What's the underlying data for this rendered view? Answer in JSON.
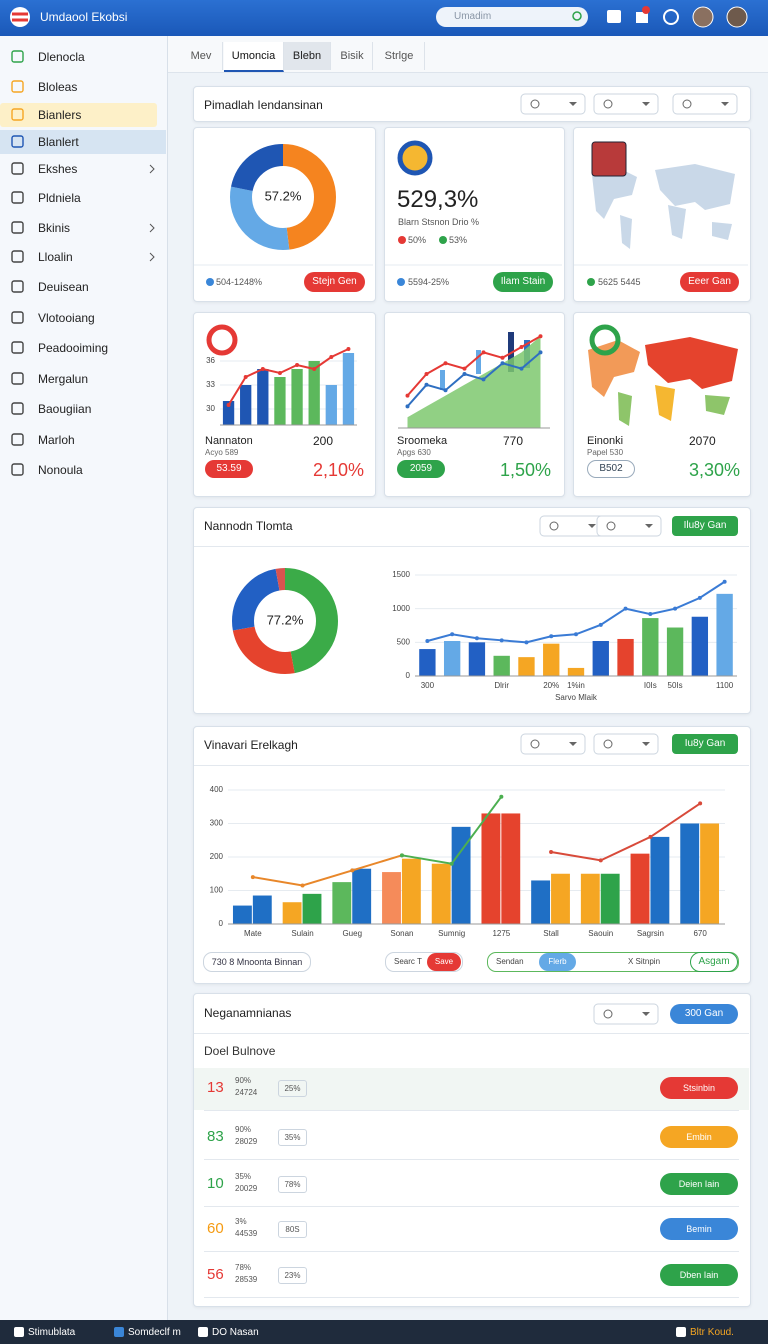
{
  "header": {
    "title": "Umdaool Ekobsi",
    "search": "Umadim"
  },
  "sidebar": {
    "items": [
      "Dlenocla",
      "Bloleas",
      "Bianlers",
      "Blanlert",
      "Ekshes",
      "Pldniela",
      "Bkinis",
      "Lloalin",
      "Deuisean",
      "Vlotooiang",
      "Peadooiming",
      "Mergalun",
      "Baougiian",
      "Marloh",
      "Nonoula"
    ]
  },
  "tabs": [
    "Mev",
    "Umoncia",
    "Blebn",
    "Bisik",
    "Strlge"
  ],
  "overview": {
    "title": "Pimadlah Iendansinan",
    "cards": [
      {
        "center": "57.2%",
        "segments": [
          {
            "color": "#f5841f",
            "value": 48
          },
          {
            "color": "#64a9e6",
            "value": 30
          },
          {
            "color": "#1f56b3",
            "value": 22
          }
        ],
        "footer": "504-1248%",
        "button": "Stejn Gen"
      },
      {
        "value": "529,3%",
        "caption": "Blarn Stsnon Drio %",
        "legend": [
          "50%",
          "53%"
        ],
        "footer": "5594-25%",
        "button": "Ilam Stain"
      },
      {
        "footer": "5625 5445",
        "button": "Eeer Gan"
      },
      {
        "name": "Nannaton",
        "count": "200",
        "sub": "Acyo 589",
        "badge": "53.59",
        "change": "2,10%",
        "chart": {
          "ylim": [
            28,
            38
          ],
          "yticks": [
            30,
            33,
            36
          ],
          "bars": {
            "colors": [
              "#1f56b3",
              "#1f56b3",
              "#1f56b3",
              "#5cb85c",
              "#5cb85c",
              "#5cb85c",
              "#64a9e6",
              "#64a9e6"
            ],
            "values": [
              31,
              33,
              35,
              34,
              35,
              36,
              33,
              37
            ]
          },
          "lines": [
            {
              "color": "#e53935",
              "values": [
                30.5,
                34,
                35,
                34.5,
                35.5,
                35,
                36.5,
                37.5
              ]
            }
          ]
        }
      },
      {
        "name": "Sroomeka",
        "count": "770",
        "sub": "Apgs 630",
        "badge": "2059",
        "change": "1,50%",
        "chart": {
          "ylim": [
            0,
            10
          ],
          "area": {
            "color": "#7ec86f",
            "values": [
              1,
              2,
              3,
              4,
              5,
              6,
              7,
              8.5
            ]
          },
          "lines": [
            {
              "color": "#2f6fc1",
              "values": [
                2,
                4,
                3.5,
                5,
                4.5,
                6,
                5.5,
                7
              ]
            },
            {
              "color": "#e53935",
              "values": [
                3,
                5,
                6,
                5.5,
                7,
                6.5,
                7.5,
                8.5
              ]
            }
          ]
        }
      },
      {
        "name": "Einonki",
        "count": "2070",
        "sub": "Papel 530",
        "badge": "B502",
        "change": "3,30%"
      }
    ]
  },
  "trend": {
    "title": "Nannodn Tlomta",
    "button": "Ilu8y Gan",
    "donut": {
      "center": "77.2%",
      "segments": [
        {
          "color": "#3bab48",
          "value": 47
        },
        {
          "color": "#e5432d",
          "value": 25
        },
        {
          "color": "#2260c4",
          "value": 25
        },
        {
          "color": "#d9534f",
          "value": 3
        }
      ]
    },
    "chart": {
      "ylim": [
        0,
        1500
      ],
      "yticks": [
        0,
        500,
        1000,
        1500
      ],
      "xlabel": "Sarvo Mlaik",
      "categories": [
        "300",
        null,
        null,
        "Dlrir",
        null,
        "20%",
        "1%in",
        null,
        null,
        "I0Is",
        "50Is",
        null,
        "1100"
      ],
      "bars": {
        "colors": [
          "#2260c4",
          "#64a9e6",
          "#2260c4",
          "#5cb85c",
          "#f5a623",
          "#f5a623",
          "#f5a623",
          "#2260c4",
          "#e5432d",
          "#5cb85c",
          "#5cb85c",
          "#2260c4",
          "#64a9e6"
        ],
        "values": [
          400,
          520,
          500,
          300,
          280,
          480,
          120,
          520,
          550,
          860,
          720,
          880,
          1220
        ]
      },
      "lines": [
        {
          "color": "#3a7bd5",
          "values": [
            520,
            620,
            560,
            530,
            500,
            590,
            620,
            760,
            1000,
            920,
            1000,
            1160,
            1400
          ]
        }
      ]
    }
  },
  "volume": {
    "title": "Vinavari Erelkagh",
    "button": "Iu8y Gan",
    "chart": {
      "ylim": [
        0,
        400
      ],
      "yticks": [
        0,
        100,
        200,
        300,
        400
      ],
      "categories": [
        "Mate",
        "Sulain",
        "Gueg",
        "Sonan",
        "Sumnig",
        "1275",
        "Stall",
        "Saouin",
        "Sagrsin",
        "670"
      ],
      "series": [
        {
          "colors": [
            "#1f6fc5",
            "#f5a623",
            "#5cb85c",
            "#f58b5a",
            "#f5a623",
            "#e5432d",
            "#1f6fc5",
            "#f5a623",
            "#e5432d",
            "#1f6fc5"
          ],
          "values": [
            55,
            65,
            125,
            155,
            180,
            330,
            130,
            150,
            210,
            300
          ]
        },
        {
          "colors": [
            "#1f6fc5",
            "#2ea34a",
            "#1f6fc5",
            "#f5a623",
            "#1f6fc5",
            "#e5432d",
            "#f5a623",
            "#2ea34a",
            "#1f6fc5",
            "#f5a623"
          ],
          "values": [
            85,
            90,
            165,
            195,
            290,
            330,
            150,
            150,
            260,
            300
          ]
        }
      ],
      "lines": [
        {
          "color": "#e8872a",
          "values": [
            140,
            115,
            160,
            205,
            null,
            null,
            null,
            null,
            null,
            null
          ]
        },
        {
          "color": "#4caf50",
          "values": [
            null,
            null,
            null,
            205,
            180,
            380,
            null,
            null,
            null,
            null
          ]
        },
        {
          "color": "#d84a3a",
          "values": [
            null,
            null,
            null,
            null,
            null,
            null,
            215,
            190,
            260,
            360
          ]
        }
      ]
    },
    "controls": {
      "range": "730 8 Mnoonta Binnan",
      "search": "Searc T",
      "save": "Save",
      "send": "Sendan",
      "filter": "Flerb",
      "stop": "X Sitnpin",
      "assign": "Asgam"
    }
  },
  "list": {
    "title": "Neganamnianas",
    "button": "300 Gan",
    "subtitle": "Doel Bulnove",
    "rows": [
      {
        "rank": "13",
        "color": "#e53935",
        "share": "90%",
        "amount": "24724",
        "badge": "25%",
        "action": "Stsinbin",
        "action_color": "#e53935"
      },
      {
        "rank": "83",
        "color": "#2ea34a",
        "share": "90%",
        "amount": "28029",
        "badge": "35%",
        "action": "Embin",
        "action_color": "#f5a623"
      },
      {
        "rank": "10",
        "color": "#2ea34a",
        "share": "35%",
        "amount": "20029",
        "badge": "78%",
        "action": "Deien Iain",
        "action_color": "#2ea34a"
      },
      {
        "rank": "60",
        "color": "#f59b12",
        "share": "3%",
        "amount": "44539",
        "badge": "80S",
        "action": "Bemin",
        "action_color": "#3a86d8"
      },
      {
        "rank": "56",
        "color": "#e53935",
        "share": "78%",
        "amount": "28539",
        "badge": "23%",
        "action": "Dben Iain",
        "action_color": "#2ea34a"
      }
    ]
  },
  "taskbar": [
    "Stimublata",
    "Somdeclf m",
    "DO Nasan",
    "Bltr Koud."
  ]
}
